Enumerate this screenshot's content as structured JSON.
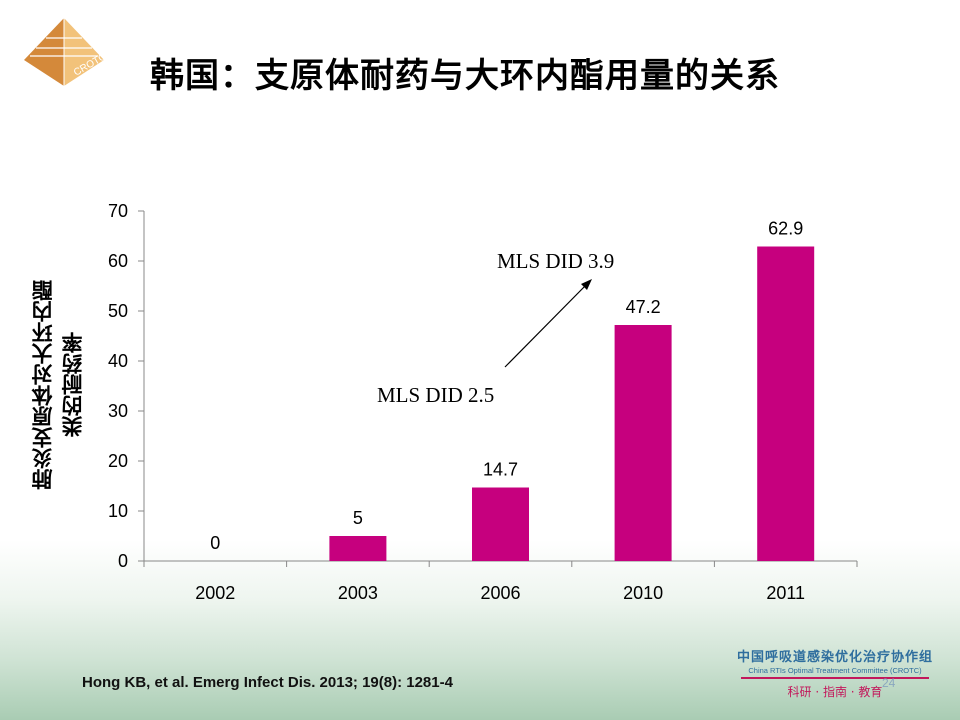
{
  "header": {
    "logo_text": "CROTC",
    "title": "韩国：支原体耐药与大环内酯用量的关系"
  },
  "chart_data": {
    "type": "bar",
    "categories": [
      "2002",
      "2003",
      "2006",
      "2010",
      "2011"
    ],
    "values": [
      0,
      5,
      14.7,
      47.2,
      62.9
    ],
    "data_labels": [
      "0",
      "5",
      "14.7",
      "47.2",
      "62.9"
    ],
    "ylabel": "肺炎支原体对大环内酯类的耐药率",
    "xlabel": "",
    "ylim": [
      0,
      70
    ],
    "yticks": [
      0,
      10,
      20,
      30,
      40,
      50,
      60,
      70
    ],
    "grid": false,
    "bar_color": "#c6007e",
    "annotations": [
      {
        "text": "MLS DID 2.5"
      },
      {
        "text": "MLS DID 3.9"
      }
    ]
  },
  "footer": {
    "citation": "Hong KB, et al. Emerg Infect Dis. 2013; 19(8): 1281-4",
    "brand_cn": "中国呼吸道感染优化治疗协作组",
    "brand_en": "China RTIs Optimal Treatment Committee (CROTC)",
    "brand_motto": "科研 · 指南 · 教育",
    "slide_number": "24"
  },
  "colors": {
    "bar": "#c6007e",
    "brand_blue": "#2f6e9e",
    "brand_magenta": "#c2185b",
    "logo_orange": "#e8a64a"
  }
}
